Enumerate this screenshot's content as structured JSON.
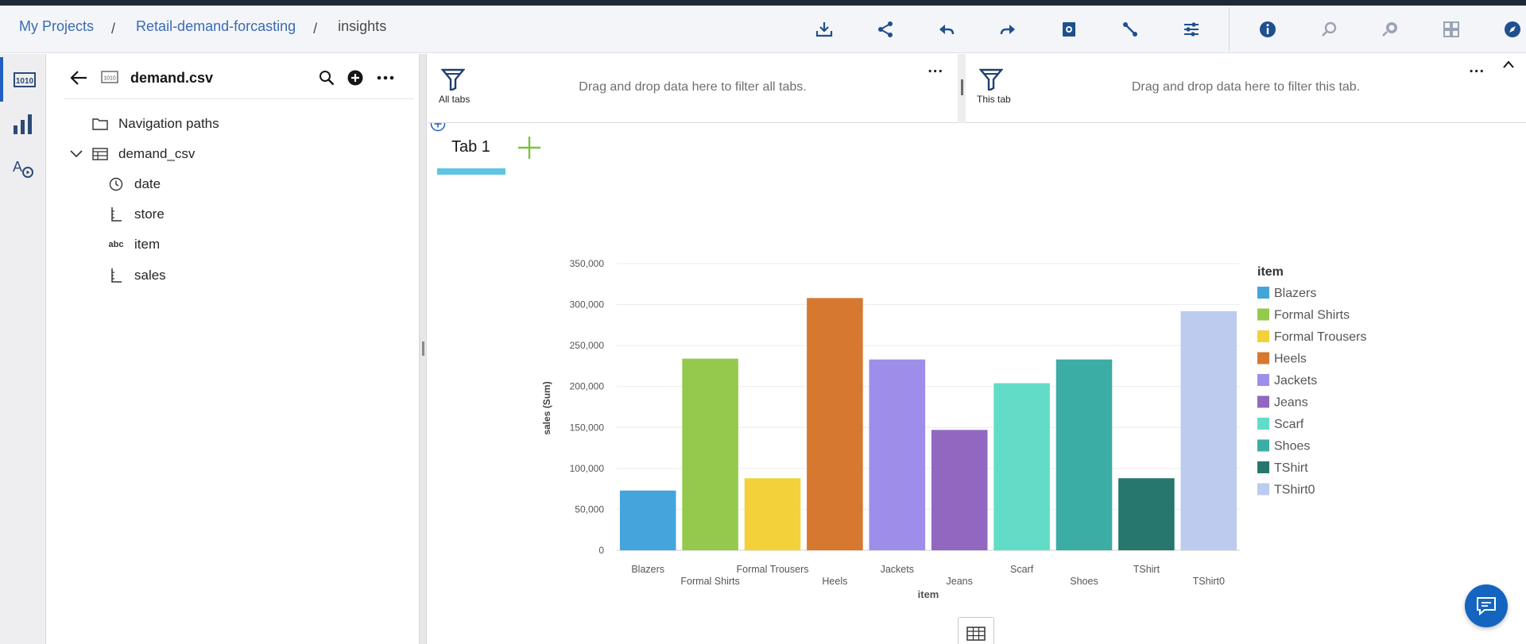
{
  "breadcrumb": {
    "items": [
      "My Projects",
      "Retail-demand-forcasting",
      "insights"
    ],
    "separator": "/"
  },
  "toolbar": {
    "icons": [
      "download-icon",
      "share-icon",
      "undo-icon",
      "redo-icon",
      "snapshot-icon",
      "relationships-icon",
      "settings-icon",
      "info-icon",
      "explore-icon",
      "assistant-icon",
      "dashboard-icon",
      "compass-icon"
    ]
  },
  "data_panel": {
    "file_name": "demand.csv",
    "navigation_paths_label": "Navigation paths",
    "table_name": "demand_csv",
    "fields": [
      {
        "name": "date",
        "icon": "clock-icon"
      },
      {
        "name": "store",
        "icon": "measure-icon"
      },
      {
        "name": "item",
        "icon": "text-abc-icon",
        "icon_text": "abc"
      },
      {
        "name": "sales",
        "icon": "measure-icon"
      }
    ]
  },
  "filters": {
    "all_tabs_label": "All tabs",
    "all_tabs_hint": "Drag and drop data here to filter all tabs.",
    "this_tab_label": "This tab",
    "this_tab_hint": "Drag and drop data here to filter this tab.",
    "more_label": "..."
  },
  "tabs": [
    {
      "label": "Tab 1",
      "active": true
    }
  ],
  "chart_data": {
    "type": "bar",
    "categories": [
      "Blazers",
      "Formal Shirts",
      "Formal Trousers",
      "Heels",
      "Jackets",
      "Jeans",
      "Scarf",
      "Shoes",
      "TShirt",
      "TShirt0"
    ],
    "values": [
      73000,
      234000,
      88000,
      308000,
      233000,
      147000,
      204000,
      233000,
      88000,
      292000
    ],
    "colors": [
      "#45a4db",
      "#94c94d",
      "#f3d13a",
      "#d6782f",
      "#9e8ee9",
      "#9168bf",
      "#62dcc7",
      "#3cada4",
      "#27776e",
      "#bccbee"
    ],
    "title": "",
    "xlabel": "item",
    "ylabel": "sales (Sum)",
    "ylim": [
      0,
      350000
    ],
    "yticks": [
      "0",
      "50,000",
      "100,000",
      "150,000",
      "200,000",
      "250,000",
      "300,000",
      "350,000"
    ],
    "grid": true,
    "legend": {
      "title": "item",
      "position": "right"
    }
  }
}
